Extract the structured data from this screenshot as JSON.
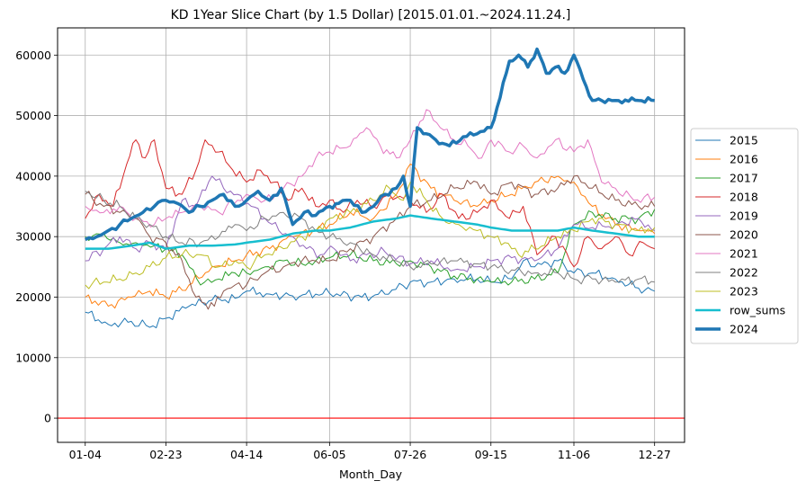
{
  "chart_data": {
    "type": "line",
    "title": "KD 1Year Slice Chart (by 1.5 Dollar) [2015.01.01.~2024.11.24.]",
    "xlabel": "Month_Day",
    "ylabel": "",
    "x_tick_labels": [
      "01-04",
      "02-23",
      "04-14",
      "06-05",
      "07-26",
      "09-15",
      "11-06",
      "12-27"
    ],
    "x_tick_positions": [
      0,
      35,
      70,
      106,
      141,
      176,
      212,
      247
    ],
    "x_range": [
      -12,
      260
    ],
    "y_ticks": [
      0,
      10000,
      20000,
      30000,
      40000,
      50000,
      60000
    ],
    "y_tick_labels": [
      "0",
      "10000",
      "20000",
      "30000",
      "40000",
      "50000",
      "60000"
    ],
    "ylim": [
      -4000,
      64500
    ],
    "grid": true,
    "legend_position": "right",
    "reference_line": {
      "y": 0,
      "color": "#ff0000"
    },
    "series": [
      {
        "name": "2015",
        "color": "#1f77b4",
        "width": 1,
        "x": [
          0,
          10,
          20,
          28,
          35,
          45,
          55,
          65,
          70,
          80,
          90,
          100,
          106,
          120,
          130,
          141,
          150,
          160,
          170,
          176,
          185,
          190,
          195,
          205,
          212,
          220,
          230,
          240,
          247
        ],
        "y": [
          17500,
          15500,
          16000,
          15000,
          16500,
          18500,
          19500,
          19800,
          21000,
          20500,
          20200,
          20500,
          20600,
          20000,
          20500,
          22500,
          22500,
          23000,
          23000,
          22500,
          23000,
          26000,
          25000,
          26000,
          24000,
          24000,
          23000,
          21500,
          21000
        ]
      },
      {
        "name": "2016",
        "color": "#ff7f0e",
        "width": 1,
        "x": [
          0,
          10,
          20,
          28,
          35,
          45,
          55,
          65,
          70,
          80,
          90,
          100,
          106,
          115,
          125,
          135,
          141,
          150,
          160,
          170,
          176,
          185,
          195,
          205,
          212,
          220,
          230,
          240,
          247
        ],
        "y": [
          20000,
          18500,
          20000,
          21000,
          20000,
          22000,
          25000,
          26000,
          27000,
          28000,
          30000,
          31000,
          32000,
          34000,
          33000,
          37000,
          42000,
          38000,
          36000,
          35000,
          36000,
          37000,
          39000,
          40000,
          39000,
          35000,
          32000,
          31000,
          30500
        ]
      },
      {
        "name": "2017",
        "color": "#2ca02c",
        "width": 1,
        "x": [
          0,
          8,
          15,
          22,
          30,
          35,
          42,
          50,
          58,
          65,
          70,
          78,
          86,
          94,
          100,
          106,
          115,
          125,
          135,
          141,
          150,
          160,
          170,
          176,
          185,
          195,
          205,
          212,
          220,
          230,
          240,
          247
        ],
        "y": [
          30000,
          30500,
          29000,
          29000,
          28500,
          28000,
          27000,
          22000,
          23000,
          24000,
          24000,
          25000,
          26000,
          25500,
          26000,
          26500,
          27000,
          26000,
          25500,
          26000,
          25000,
          23500,
          23000,
          22500,
          22500,
          23000,
          24000,
          32000,
          34000,
          33000,
          33000,
          34500
        ]
      },
      {
        "name": "2018",
        "color": "#d62728",
        "width": 1,
        "x": [
          0,
          6,
          12,
          18,
          22,
          26,
          30,
          35,
          42,
          48,
          52,
          58,
          64,
          70,
          76,
          82,
          88,
          94,
          100,
          106,
          112,
          118,
          125,
          132,
          141,
          148,
          155,
          162,
          170,
          176,
          184,
          190,
          196,
          204,
          212,
          218,
          224,
          230,
          236,
          242,
          247
        ],
        "y": [
          33000,
          37000,
          35000,
          42000,
          46000,
          43000,
          46000,
          38000,
          37000,
          41000,
          46000,
          44000,
          41000,
          39000,
          41000,
          39000,
          36000,
          38000,
          35000,
          36000,
          34000,
          36000,
          35000,
          37000,
          36000,
          34000,
          37000,
          33000,
          34000,
          36000,
          33000,
          35000,
          27000,
          30000,
          25000,
          30000,
          28000,
          30000,
          27000,
          29000,
          28000
        ]
      },
      {
        "name": "2019",
        "color": "#9467bd",
        "width": 1,
        "x": [
          0,
          8,
          15,
          22,
          28,
          35,
          42,
          48,
          55,
          60,
          66,
          72,
          78,
          84,
          90,
          96,
          102,
          108,
          115,
          122,
          130,
          141,
          150,
          160,
          170,
          176,
          185,
          195,
          205,
          212,
          220,
          230,
          240,
          247
        ],
        "y": [
          26000,
          28000,
          30000,
          28000,
          29000,
          28000,
          36000,
          35000,
          40000,
          38000,
          37000,
          35000,
          33000,
          31000,
          30000,
          28000,
          27000,
          28000,
          26000,
          27000,
          27500,
          25500,
          26000,
          24500,
          25000,
          26000,
          26500,
          26000,
          28000,
          32000,
          31500,
          32000,
          33000,
          31000
        ]
      },
      {
        "name": "2020",
        "color": "#8c564b",
        "width": 1,
        "x": [
          0,
          8,
          15,
          22,
          28,
          35,
          42,
          48,
          52,
          56,
          60,
          65,
          70,
          78,
          86,
          94,
          100,
          106,
          115,
          125,
          135,
          141,
          150,
          160,
          170,
          176,
          185,
          195,
          205,
          212,
          220,
          230,
          240,
          247
        ],
        "y": [
          37000,
          35000,
          34000,
          33000,
          30000,
          29000,
          26000,
          20000,
          19000,
          18500,
          21000,
          22000,
          22000,
          24000,
          25000,
          26000,
          26000,
          26000,
          28000,
          30000,
          33000,
          35000,
          36000,
          38000,
          39000,
          37000,
          39000,
          37000,
          38000,
          40000,
          38000,
          36000,
          35000,
          35000
        ]
      },
      {
        "name": "2021",
        "color": "#e377c2",
        "width": 1,
        "x": [
          0,
          8,
          15,
          22,
          30,
          35,
          42,
          50,
          58,
          66,
          70,
          78,
          86,
          94,
          100,
          106,
          115,
          122,
          128,
          135,
          141,
          148,
          154,
          160,
          166,
          172,
          176,
          184,
          190,
          196,
          204,
          212,
          218,
          224,
          230,
          238,
          247
        ],
        "y": [
          35000,
          34000,
          35000,
          33000,
          32000,
          33000,
          34000,
          35000,
          34000,
          36000,
          37000,
          36000,
          38000,
          40000,
          43000,
          44000,
          45000,
          48000,
          45000,
          43000,
          46000,
          51000,
          48000,
          46000,
          45000,
          43000,
          46000,
          44000,
          45000,
          43000,
          46000,
          44000,
          46000,
          39000,
          38000,
          36000,
          36500
        ]
      },
      {
        "name": "2022",
        "color": "#7f7f7f",
        "width": 1,
        "x": [
          0,
          8,
          15,
          22,
          28,
          35,
          42,
          50,
          58,
          65,
          70,
          78,
          86,
          94,
          100,
          106,
          115,
          125,
          135,
          141,
          150,
          160,
          170,
          176,
          185,
          195,
          205,
          212,
          220,
          230,
          240,
          247
        ],
        "y": [
          37500,
          36000,
          35000,
          33000,
          32000,
          30000,
          29000,
          29000,
          30000,
          32000,
          31000,
          33000,
          34000,
          33000,
          31000,
          30000,
          29000,
          27000,
          26000,
          25000,
          25500,
          26000,
          25500,
          25000,
          24500,
          24000,
          24000,
          23000,
          23000,
          22500,
          23000,
          22500
        ]
      },
      {
        "name": "2023",
        "color": "#bcbd22",
        "width": 1,
        "x": [
          0,
          8,
          15,
          22,
          28,
          35,
          42,
          50,
          58,
          65,
          70,
          78,
          86,
          94,
          100,
          106,
          115,
          125,
          132,
          138,
          141,
          148,
          155,
          162,
          170,
          176,
          182,
          188,
          195,
          205,
          212,
          220,
          230,
          240,
          247
        ],
        "y": [
          22000,
          22500,
          23000,
          24000,
          25000,
          26500,
          27000,
          27000,
          25000,
          26000,
          25000,
          27000,
          28000,
          30000,
          31000,
          33000,
          34000,
          36000,
          38000,
          36000,
          39000,
          36000,
          33000,
          32000,
          31000,
          30000,
          29000,
          27000,
          28000,
          30000,
          31000,
          33000,
          32000,
          31000,
          31500
        ]
      },
      {
        "name": "row_sums",
        "color": "#17becf",
        "width": 2.5,
        "x": [
          0,
          10,
          20,
          28,
          35,
          45,
          55,
          65,
          70,
          80,
          90,
          100,
          106,
          115,
          125,
          135,
          141,
          150,
          160,
          170,
          176,
          185,
          195,
          205,
          212,
          220,
          230,
          240,
          247
        ],
        "y": [
          28000,
          28000,
          28500,
          29000,
          28000,
          28500,
          28500,
          28700,
          29000,
          29500,
          30500,
          31000,
          31000,
          31500,
          32500,
          33000,
          33500,
          33000,
          32500,
          32000,
          31500,
          31000,
          31000,
          31000,
          31500,
          31000,
          30500,
          30000,
          30000
        ]
      },
      {
        "name": "2024",
        "color": "#1f77b4",
        "width": 3.5,
        "x": [
          0,
          5,
          10,
          15,
          20,
          25,
          30,
          35,
          40,
          45,
          50,
          55,
          60,
          65,
          70,
          75,
          80,
          85,
          90,
          95,
          100,
          106,
          110,
          115,
          120,
          125,
          130,
          135,
          138,
          141,
          144,
          148,
          152,
          158,
          164,
          170,
          176,
          180,
          184,
          188,
          192,
          196,
          200,
          204,
          208,
          212,
          216,
          220,
          224,
          230,
          240,
          247
        ],
        "y": [
          29500,
          30000,
          31000,
          32000,
          33000,
          34000,
          35000,
          36000,
          35500,
          34000,
          35000,
          36000,
          37000,
          35000,
          36000,
          37500,
          36000,
          38000,
          32000,
          34000,
          33500,
          35000,
          35500,
          36000,
          34000,
          35000,
          37000,
          38000,
          40000,
          35000,
          48000,
          47000,
          46000,
          45000,
          46500,
          47000,
          48000,
          53000,
          59000,
          60000,
          58000,
          61000,
          57000,
          58000,
          57000,
          60000,
          56000,
          52500,
          52500,
          52500,
          52500,
          52500
        ]
      }
    ]
  }
}
